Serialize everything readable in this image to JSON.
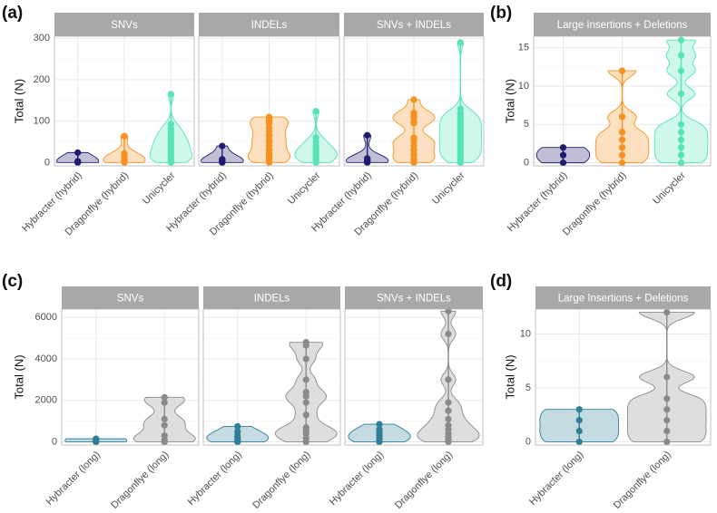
{
  "chart_data": [
    {
      "panel": "(a)",
      "type": "violin",
      "ylabel": "Total (N)",
      "ylim": [
        -8,
        305
      ],
      "yticks": [
        0,
        100,
        200,
        300
      ],
      "categories": [
        "Hybracter (hybrid)",
        "Dragonflye (hybrid)",
        "Unicycler"
      ],
      "colors": [
        "#201c6e",
        "#f7901e",
        "#56e3b6"
      ],
      "facets": [
        {
          "title": "SNVs",
          "groups": [
            {
              "name": "Hybracter (hybrid)",
              "points": [
                0,
                1,
                2,
                3,
                24
              ]
            },
            {
              "name": "Dragonflye (hybrid)",
              "points": [
                0,
                1,
                2,
                5,
                10,
                16,
                22,
                64
              ]
            },
            {
              "name": "Unicycler",
              "points": [
                0,
                2,
                5,
                8,
                12,
                16,
                20,
                25,
                30,
                35,
                40,
                45,
                50,
                55,
                60,
                67,
                75,
                82,
                93,
                165
              ]
            }
          ]
        },
        {
          "title": "INDELs",
          "groups": [
            {
              "name": "Hybracter (hybrid)",
              "points": [
                0,
                2,
                4,
                6,
                8,
                40
              ]
            },
            {
              "name": "Dragonflye (hybrid)",
              "points": [
                0,
                5,
                10,
                15,
                20,
                30,
                40,
                50,
                55,
                65,
                75,
                85,
                95,
                100,
                105,
                110
              ]
            },
            {
              "name": "Unicycler",
              "points": [
                0,
                4,
                8,
                12,
                16,
                20,
                25,
                30,
                35,
                40,
                50,
                60,
                124
              ]
            }
          ]
        },
        {
          "title": "SNVs + INDELs",
          "groups": [
            {
              "name": "Hybracter (hybrid)",
              "points": [
                0,
                1,
                3,
                6,
                8,
                10,
                66
              ]
            },
            {
              "name": "Dragonflye (hybrid)",
              "points": [
                0,
                5,
                10,
                20,
                30,
                40,
                50,
                55,
                60,
                95,
                100,
                110,
                115,
                120,
                152
              ]
            },
            {
              "name": "Unicycler",
              "points": [
                0,
                5,
                10,
                15,
                20,
                25,
                30,
                35,
                40,
                45,
                50,
                55,
                60,
                65,
                70,
                75,
                80,
                85,
                90,
                95,
                100,
                105,
                110,
                115,
                120,
                130,
                290
              ]
            }
          ]
        }
      ]
    },
    {
      "panel": "(b)",
      "type": "violin",
      "ylabel": "Total (N)",
      "ylim": [
        -0.4,
        16.5
      ],
      "yticks": [
        0,
        5,
        10,
        15
      ],
      "categories": [
        "Hybracter (hybrid)",
        "Dragonflye (hybrid)",
        "Unicycler"
      ],
      "colors": [
        "#201c6e",
        "#f7901e",
        "#56e3b6"
      ],
      "facets": [
        {
          "title": "Large Insertions + Deletions",
          "groups": [
            {
              "name": "Hybracter (hybrid)",
              "points": [
                0,
                1,
                2
              ]
            },
            {
              "name": "Dragonflye (hybrid)",
              "points": [
                0,
                1,
                2,
                3,
                4,
                6,
                12
              ]
            },
            {
              "name": "Unicycler",
              "points": [
                0,
                1,
                2,
                3,
                4,
                5,
                9,
                12,
                14,
                16
              ]
            }
          ]
        }
      ]
    },
    {
      "panel": "(c)",
      "type": "violin",
      "ylabel": "Total (N)",
      "ylim": [
        -150,
        6400
      ],
      "yticks": [
        0,
        2000,
        4000,
        6000
      ],
      "categories": [
        "Hybracter (long)",
        "Dragonflye (long)"
      ],
      "colors": [
        "#2f7d97",
        "#8a8a8a"
      ],
      "facets": [
        {
          "title": "SNVs",
          "groups": [
            {
              "name": "Hybracter (long)",
              "points": [
                0,
                30,
                60,
                100,
                150
              ]
            },
            {
              "name": "Dragonflye (long)",
              "points": [
                0,
                100,
                300,
                800,
                1100,
                1900,
                2150
              ]
            }
          ]
        },
        {
          "title": "INDELs",
          "groups": [
            {
              "name": "Hybracter (long)",
              "points": [
                0,
                50,
                100,
                200,
                300,
                500,
                750
              ]
            },
            {
              "name": "Dragonflye (long)",
              "points": [
                0,
                200,
                400,
                550,
                700,
                1300,
                1900,
                2200,
                2400,
                3000,
                4000,
                4650,
                4800
              ]
            }
          ]
        },
        {
          "title": "SNVs + INDELs",
          "groups": [
            {
              "name": "Hybracter (long)",
              "points": [
                0,
                50,
                150,
                300,
                450,
                600,
                850
              ]
            },
            {
              "name": "Dragonflye (long)",
              "points": [
                0,
                100,
                250,
                400,
                600,
                800,
                1100,
                1500,
                1900,
                3000,
                5200,
                6300
              ]
            }
          ]
        }
      ]
    },
    {
      "panel": "(d)",
      "type": "violin",
      "ylabel": "Total (N)",
      "ylim": [
        -0.3,
        12.3
      ],
      "yticks": [
        0,
        5,
        10
      ],
      "categories": [
        "Hybracter (long)",
        "Dragonflye (long)"
      ],
      "colors": [
        "#2f7d97",
        "#8a8a8a"
      ],
      "facets": [
        {
          "title": "Large Insertions + Deletions",
          "groups": [
            {
              "name": "Hybracter (long)",
              "points": [
                0,
                1,
                2,
                3
              ]
            },
            {
              "name": "Dragonflye (long)",
              "points": [
                0,
                1,
                2,
                3,
                4,
                6,
                12
              ]
            }
          ]
        }
      ]
    }
  ]
}
